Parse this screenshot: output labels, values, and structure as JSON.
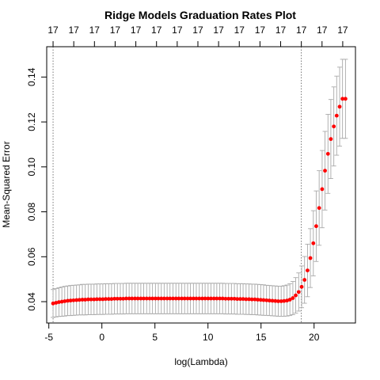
{
  "chart_data": {
    "type": "scatter",
    "title": "Ridge Models Graduation Rates Plot",
    "xlabel": "log(Lambda)",
    "ylabel": "Mean-Squared Error",
    "xlim": [
      -5.2,
      23.9
    ],
    "ylim": [
      0.0305,
      0.1535
    ],
    "x_ticks": [
      {
        "v": -5,
        "label": "-5"
      },
      {
        "v": 0,
        "label": "0"
      },
      {
        "v": 5,
        "label": "5"
      },
      {
        "v": 10,
        "label": "10"
      },
      {
        "v": 15,
        "label": "15"
      },
      {
        "v": 20,
        "label": "20"
      }
    ],
    "y_ticks": [
      {
        "v": 0.04,
        "label": "0.04"
      },
      {
        "v": 0.06,
        "label": "0.06"
      },
      {
        "v": 0.08,
        "label": "0.08"
      },
      {
        "v": 0.1,
        "label": "0.10"
      },
      {
        "v": 0.12,
        "label": "0.12"
      },
      {
        "v": 0.14,
        "label": "0.14"
      }
    ],
    "top_axis": {
      "x": [
        -4.6,
        -2.65,
        -0.7,
        1.25,
        3.2,
        5.15,
        7.1,
        9.05,
        11.0,
        12.95,
        14.9,
        16.85,
        18.8,
        20.75,
        22.7
      ],
      "labels": [
        "17",
        "17",
        "17",
        "17",
        "17",
        "17",
        "17",
        "17",
        "17",
        "17",
        "17",
        "17",
        "17",
        "17",
        "17"
      ]
    },
    "vlines": [
      -4.6,
      18.8
    ],
    "grid": false,
    "legend": "none",
    "colors": {
      "point": "#ff0000",
      "errorbar": "#a9a9a9",
      "axis": "#000000",
      "vline": "#555555"
    },
    "series": [
      {
        "x": [
          -4.6,
          -4.32,
          -4.05,
          -3.77,
          -3.5,
          -3.22,
          -2.95,
          -2.67,
          -2.39,
          -2.12,
          -1.84,
          -1.57,
          -1.29,
          -1.02,
          -0.74,
          -0.47,
          -0.19,
          0.09,
          0.36,
          0.64,
          0.91,
          1.19,
          1.46,
          1.74,
          2.01,
          2.29,
          2.57,
          2.84,
          3.12,
          3.39,
          3.67,
          3.94,
          4.22,
          4.5,
          4.77,
          5.05,
          5.32,
          5.6,
          5.87,
          6.15,
          6.42,
          6.7,
          6.98,
          7.25,
          7.53,
          7.8,
          8.08,
          8.35,
          8.63,
          8.9,
          9.18,
          9.46,
          9.73,
          10.01,
          10.28,
          10.56,
          10.83,
          11.11,
          11.38,
          11.66,
          11.94,
          12.21,
          12.49,
          12.76,
          13.04,
          13.31,
          13.59,
          13.87,
          14.14,
          14.42,
          14.69,
          14.97,
          15.24,
          15.52,
          15.79,
          16.07,
          16.35,
          16.62,
          16.9,
          17.17,
          17.45,
          17.72,
          18.0,
          18.27,
          18.55,
          18.83,
          19.1,
          19.38,
          19.65,
          19.93,
          20.2,
          20.48,
          20.76,
          21.03,
          21.31,
          21.58,
          21.86,
          22.13,
          22.41,
          22.68,
          22.96
        ],
        "y": [
          0.0392,
          0.0395,
          0.0398,
          0.04,
          0.0402,
          0.0404,
          0.0405,
          0.0406,
          0.0407,
          0.0408,
          0.0409,
          0.0409,
          0.041,
          0.041,
          0.041,
          0.0411,
          0.0411,
          0.0411,
          0.0412,
          0.0412,
          0.0412,
          0.0413,
          0.0413,
          0.0413,
          0.0413,
          0.0414,
          0.0414,
          0.0414,
          0.0414,
          0.0414,
          0.0414,
          0.0414,
          0.0414,
          0.0414,
          0.0414,
          0.0414,
          0.0414,
          0.0414,
          0.0414,
          0.0414,
          0.0414,
          0.0414,
          0.0414,
          0.0414,
          0.0414,
          0.0414,
          0.0414,
          0.0414,
          0.0414,
          0.0414,
          0.0414,
          0.0414,
          0.0414,
          0.0414,
          0.0414,
          0.0414,
          0.0414,
          0.0414,
          0.0414,
          0.0413,
          0.0413,
          0.0413,
          0.0413,
          0.0412,
          0.0412,
          0.0412,
          0.0411,
          0.0411,
          0.041,
          0.041,
          0.0409,
          0.0408,
          0.0407,
          0.0406,
          0.0405,
          0.0404,
          0.0403,
          0.0402,
          0.0402,
          0.0403,
          0.0405,
          0.0409,
          0.0416,
          0.0428,
          0.0443,
          0.0466,
          0.0497,
          0.0539,
          0.0594,
          0.066,
          0.0736,
          0.0817,
          0.0901,
          0.0983,
          0.1058,
          0.1124,
          0.118,
          0.1228,
          0.1268,
          0.1303,
          0.1303
        ],
        "err": [
          0.0062,
          0.0063,
          0.0064,
          0.0065,
          0.0066,
          0.0066,
          0.0067,
          0.0067,
          0.0067,
          0.0067,
          0.0068,
          0.0068,
          0.0068,
          0.0068,
          0.0068,
          0.0068,
          0.0068,
          0.0068,
          0.0068,
          0.0068,
          0.0068,
          0.0068,
          0.0068,
          0.0068,
          0.0068,
          0.0068,
          0.0068,
          0.0068,
          0.0068,
          0.0068,
          0.0068,
          0.0068,
          0.0068,
          0.0068,
          0.0068,
          0.0068,
          0.0068,
          0.0068,
          0.0068,
          0.0068,
          0.0068,
          0.0068,
          0.0068,
          0.0068,
          0.0068,
          0.0068,
          0.0068,
          0.0068,
          0.0068,
          0.0068,
          0.0068,
          0.0068,
          0.0068,
          0.0068,
          0.0068,
          0.0068,
          0.0068,
          0.0068,
          0.0068,
          0.0068,
          0.0068,
          0.0068,
          0.0068,
          0.0068,
          0.0068,
          0.0068,
          0.0068,
          0.0068,
          0.0068,
          0.0068,
          0.0068,
          0.0068,
          0.0068,
          0.0067,
          0.0067,
          0.0067,
          0.0067,
          0.0067,
          0.0067,
          0.0068,
          0.0069,
          0.0071,
          0.0074,
          0.0079,
          0.0085,
          0.0093,
          0.0104,
          0.0117,
          0.0131,
          0.0145,
          0.0157,
          0.0166,
          0.0172,
          0.0175,
          0.0176,
          0.0176,
          0.0176,
          0.0176,
          0.0176,
          0.0176,
          0.0176
        ]
      }
    ]
  }
}
